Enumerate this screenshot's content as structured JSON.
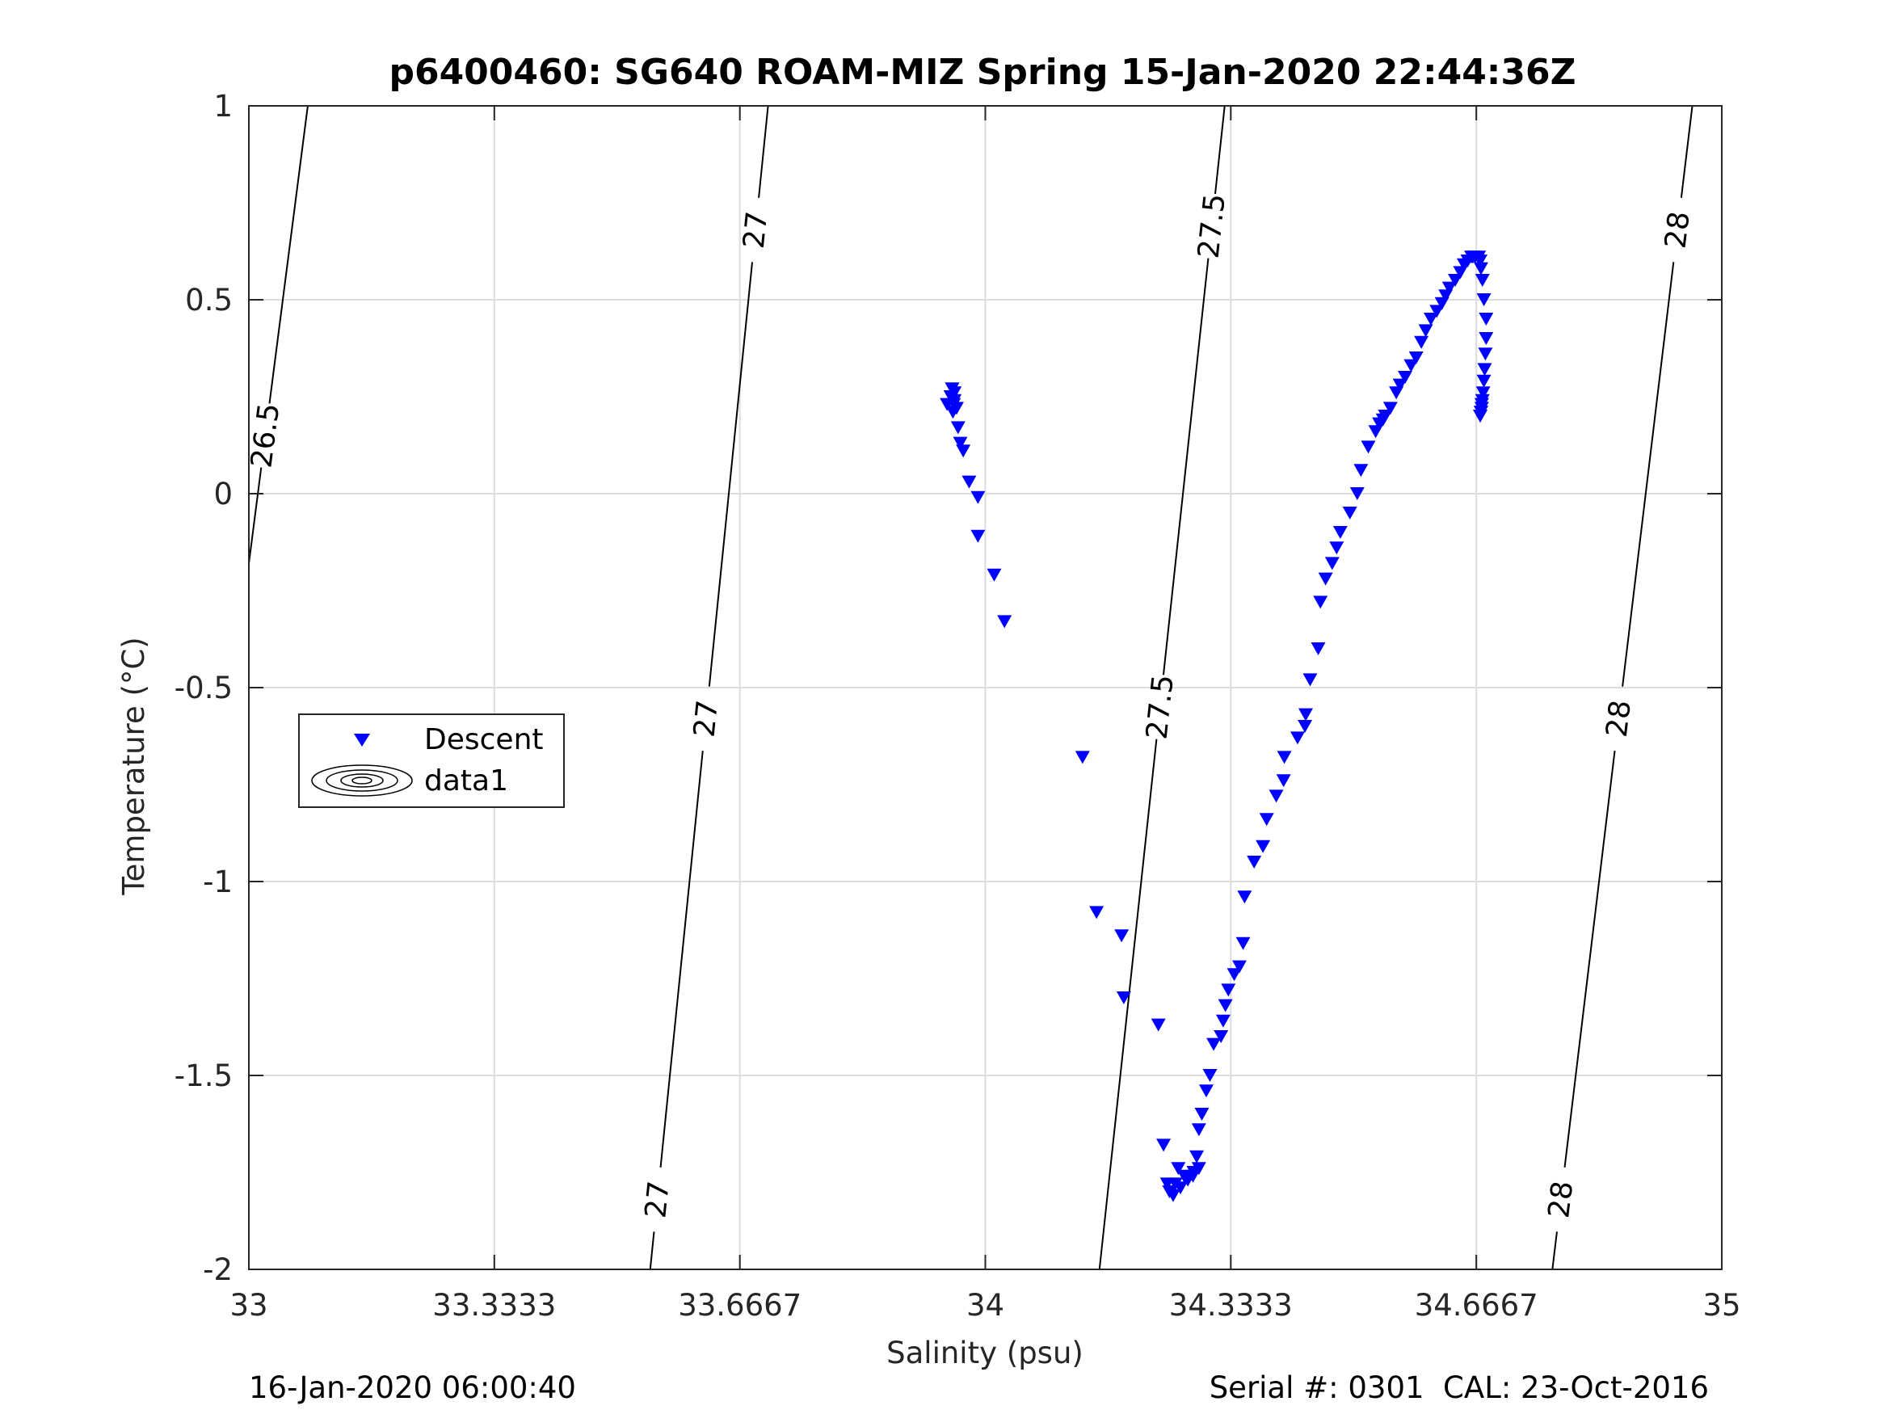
{
  "chart_data": {
    "type": "scatter",
    "title": "p6400460: SG640 ROAM-MIZ Spring 15-Jan-2020 22:44:36Z",
    "xlabel": "Salinity (psu)",
    "ylabel": "Temperature (°C)",
    "xlim": [
      33,
      35
    ],
    "ylim": [
      -2,
      1
    ],
    "x_ticks": [
      33,
      33.3333,
      33.6667,
      34,
      34.3333,
      34.6667,
      35
    ],
    "x_tick_labels": [
      "33",
      "33.3333",
      "33.6667",
      "34",
      "34.3333",
      "34.6667",
      "35"
    ],
    "y_ticks": [
      1,
      0.5,
      0,
      -0.5,
      -1,
      -1.5,
      -2
    ],
    "y_tick_labels": [
      "1",
      "0.5",
      "0",
      "-0.5",
      "-1",
      "-1.5",
      "-2"
    ],
    "grid": true,
    "legend": {
      "placement": "middle-left",
      "entries": [
        {
          "label": "Descent",
          "marker": "triangle-down",
          "color": "#0000ff"
        },
        {
          "label": "data1",
          "marker": "contour",
          "color": "#000000"
        }
      ]
    },
    "footer_left": "16-Jan-2020 06:00:40",
    "footer_right": "Serial #: 0301  CAL: 23-Oct-2016",
    "series": [
      {
        "name": "Descent",
        "marker": "triangle-down",
        "color": "#0000ff",
        "x": [
          33.948,
          33.953,
          33.955,
          33.955,
          33.957,
          33.956,
          33.958,
          33.958,
          33.961,
          33.963,
          33.966,
          33.97,
          33.978,
          33.99,
          33.99,
          34.012,
          34.026,
          34.132,
          34.151,
          34.185,
          34.188,
          34.235,
          34.242,
          34.247,
          34.25,
          34.255,
          34.258,
          34.262,
          34.265,
          34.27,
          34.275,
          34.282,
          34.29,
          34.287,
          34.283,
          34.29,
          34.294,
          34.3,
          34.305,
          34.31,
          34.32,
          34.323,
          34.326,
          34.33,
          34.338,
          34.345,
          34.35,
          34.352,
          34.365,
          34.377,
          34.382,
          34.395,
          34.405,
          34.406,
          34.424,
          34.434,
          34.435,
          34.441,
          34.452,
          34.455,
          34.462,
          34.471,
          34.477,
          34.482,
          34.495,
          34.505,
          34.51,
          34.52,
          34.53,
          34.535,
          34.54,
          34.543,
          34.55,
          34.558,
          34.563,
          34.57,
          34.578,
          34.585,
          34.592,
          34.598,
          34.605,
          34.613,
          34.62,
          34.625,
          34.63,
          34.638,
          34.645,
          34.65,
          34.655,
          34.66,
          34.662,
          34.665,
          34.67,
          34.672,
          34.673,
          34.675,
          34.677,
          34.68,
          34.68,
          34.679,
          34.678,
          34.677,
          34.676,
          34.675,
          34.674,
          34.674,
          34.673,
          34.673,
          34.672,
          34.672
        ],
        "y": [
          0.23,
          0.25,
          0.27,
          0.27,
          0.23,
          0.21,
          0.26,
          0.24,
          0.22,
          0.17,
          0.13,
          0.11,
          0.03,
          -0.01,
          -0.11,
          -0.21,
          -0.33,
          -0.68,
          -1.08,
          -1.14,
          -1.3,
          -1.37,
          -1.68,
          -1.78,
          -1.8,
          -1.81,
          -1.78,
          -1.74,
          -1.79,
          -1.76,
          -1.77,
          -1.76,
          -1.74,
          -1.71,
          -1.75,
          -1.64,
          -1.6,
          -1.54,
          -1.5,
          -1.42,
          -1.4,
          -1.36,
          -1.32,
          -1.28,
          -1.24,
          -1.22,
          -1.16,
          -1.04,
          -0.95,
          -0.91,
          -0.84,
          -0.78,
          -0.74,
          -0.68,
          -0.63,
          -0.6,
          -0.57,
          -0.48,
          -0.4,
          -0.28,
          -0.22,
          -0.18,
          -0.14,
          -0.1,
          -0.05,
          0.0,
          0.06,
          0.12,
          0.16,
          0.18,
          0.19,
          0.2,
          0.22,
          0.26,
          0.28,
          0.3,
          0.33,
          0.35,
          0.39,
          0.42,
          0.45,
          0.47,
          0.49,
          0.51,
          0.53,
          0.55,
          0.57,
          0.59,
          0.6,
          0.61,
          0.61,
          0.61,
          0.61,
          0.6,
          0.58,
          0.55,
          0.5,
          0.45,
          0.4,
          0.36,
          0.32,
          0.29,
          0.26,
          0.24,
          0.23,
          0.22,
          0.21,
          0.21,
          0.2,
          0.2
        ]
      }
    ],
    "contours": [
      {
        "level": "26.5",
        "x": [
          33.0,
          33.08
        ],
        "y": [
          -0.18,
          1.0
        ],
        "labels_at": [
          0.15
        ]
      },
      {
        "level": "27",
        "x": [
          33.545,
          33.705
        ],
        "y": [
          -2.0,
          1.0
        ],
        "labels_at": [
          -1.82,
          -0.58,
          0.68
        ]
      },
      {
        "level": "27.5",
        "x": [
          34.155,
          34.325
        ],
        "y": [
          -2.0,
          1.0
        ],
        "labels_at": [
          -0.55,
          0.69
        ]
      },
      {
        "level": "28",
        "x": [
          34.77,
          34.96
        ],
        "y": [
          -2.0,
          1.0
        ],
        "labels_at": [
          -1.82,
          -0.58,
          0.68
        ]
      }
    ]
  }
}
